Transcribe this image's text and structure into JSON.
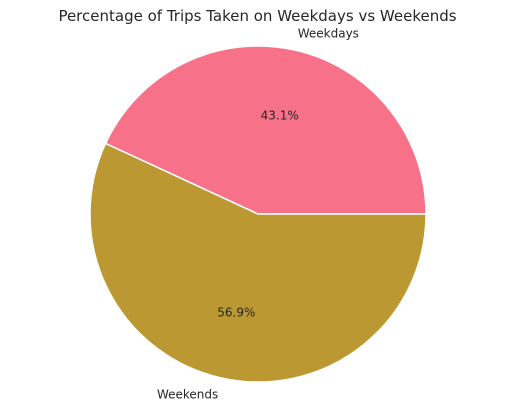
{
  "chart_data": {
    "type": "pie",
    "title": "Percentage of Trips Taken on Weekdays vs Weekends",
    "labels": [
      "Weekdays",
      "Weekends"
    ],
    "values": [
      43.1,
      56.9
    ],
    "percent_labels": [
      "43.1%",
      "56.9%"
    ],
    "colors": [
      "#f77189",
      "#bb9832"
    ],
    "start_angle_deg": 0,
    "direction": "counterclockwise",
    "legend": "none"
  }
}
